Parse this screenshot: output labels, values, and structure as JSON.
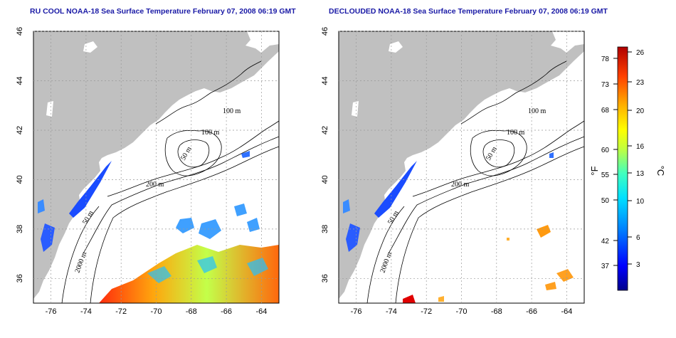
{
  "titles": {
    "left": "RU COOL NOAA-18 Sea Surface Temperature February 07, 2008 06:19 GMT",
    "right": "DECLOUDED NOAA-18 Sea Surface Temperature February 07, 2008 06:19 GMT"
  },
  "axes": {
    "lon_ticks": [
      "-76",
      "-74",
      "-72",
      "-70",
      "-68",
      "-66",
      "-64"
    ],
    "lat_ticks": [
      "46",
      "44",
      "42",
      "40",
      "38",
      "36"
    ],
    "lon_range": [
      -77,
      -63
    ],
    "lat_range": [
      35,
      46
    ],
    "grid": "dotted"
  },
  "contour_labels": {
    "c100a": "100 m",
    "c100b": "100 m",
    "c50": "50 m",
    "c200": "200 m",
    "c50b": "50 m",
    "c2000": "2000 m"
  },
  "colorbar": {
    "fahrenheit_ticks": [
      "78",
      "73",
      "68",
      "60",
      "55",
      "50",
      "42",
      "37"
    ],
    "celsius_ticks": [
      "26",
      "23",
      "20",
      "16",
      "13",
      "10",
      "6",
      "3"
    ],
    "fahrenheit_unit": "°F",
    "celsius_unit": "°C",
    "range_celsius": [
      0,
      28
    ],
    "colors": [
      "#00008b",
      "#0000ff",
      "#0080ff",
      "#00e0ff",
      "#40ffbf",
      "#c0ff40",
      "#ffff00",
      "#ffb000",
      "#ff4000",
      "#b00000"
    ]
  },
  "palette": {
    "land": "#c0c0c0",
    "ocean": "#ffffff",
    "title": "#1a1aa6"
  }
}
